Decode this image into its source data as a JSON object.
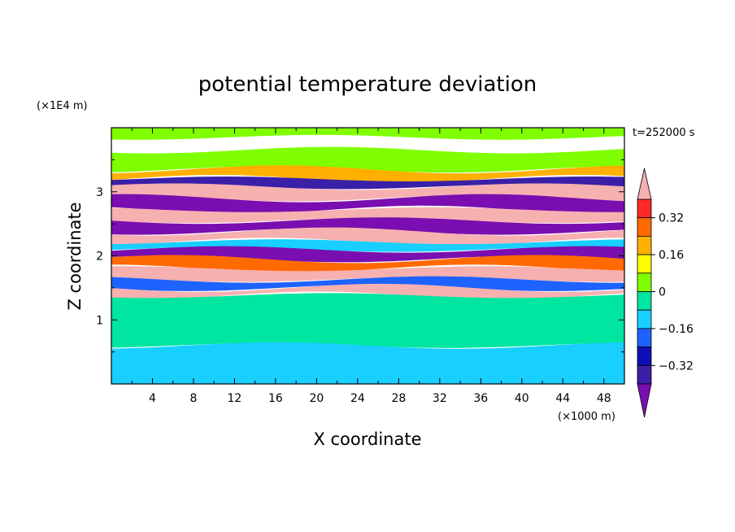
{
  "chart_data": {
    "type": "heatmap",
    "title": "potential temperature deviation",
    "xlabel": "X coordinate",
    "ylabel": "Z coordinate",
    "x_unit": "(×1000 m)",
    "y_unit": "(×1E4 m)",
    "time_label": "t=252000 s",
    "xlim": [
      0,
      50
    ],
    "ylim": [
      0,
      4
    ],
    "x_ticks": [
      "4",
      "8",
      "12",
      "16",
      "20",
      "24",
      "28",
      "32",
      "36",
      "40",
      "44",
      "48"
    ],
    "y_ticks": [
      "1",
      "2",
      "3"
    ],
    "colorbar": {
      "levels": [
        -0.48,
        -0.4,
        -0.32,
        -0.24,
        -0.16,
        -0.08,
        0,
        0.08,
        0.16,
        0.24,
        0.32,
        0.4,
        0.48
      ],
      "labels": [
        "0.32",
        "0.16",
        "0",
        "−0.16",
        "−0.32"
      ],
      "colors": [
        "#7a0eb0",
        "#3a1fa8",
        "#0f0fb8",
        "#1e63ff",
        "#18cfff",
        "#00e5a0",
        "#7fff00",
        "#ffff00",
        "#ffb000",
        "#ff6a00",
        "#ff2828",
        "#f7b0b0"
      ],
      "extends": "both"
    },
    "layers": [
      {
        "z": [
          3.85,
          4.0
        ],
        "level": 0.0
      },
      {
        "z": [
          3.35,
          3.65
        ],
        "level": 0.04
      },
      {
        "z": [
          3.2,
          3.35
        ],
        "level": 0.2
      },
      {
        "z": [
          3.08,
          3.2
        ],
        "level": -0.4
      },
      {
        "z": [
          2.9,
          3.08
        ],
        "level": 0.44
      },
      {
        "z": [
          2.72,
          2.9
        ],
        "level": -0.44
      },
      {
        "z": [
          2.55,
          2.72
        ],
        "level": 0.44
      },
      {
        "z": [
          2.38,
          2.55
        ],
        "level": -0.44
      },
      {
        "z": [
          2.22,
          2.38
        ],
        "level": 0.44
      },
      {
        "z": [
          2.1,
          2.22
        ],
        "level": -0.1
      },
      {
        "z": [
          1.95,
          2.1
        ],
        "level": -0.44
      },
      {
        "z": [
          1.8,
          1.95
        ],
        "level": 0.28
      },
      {
        "z": [
          1.63,
          1.8
        ],
        "level": 0.44
      },
      {
        "z": [
          1.5,
          1.63
        ],
        "level": -0.2
      },
      {
        "z": [
          1.38,
          1.5
        ],
        "level": 0.44
      },
      {
        "z": [
          0.6,
          1.38
        ],
        "level": -0.02
      },
      {
        "z": [
          0.0,
          0.6
        ],
        "level": -0.12
      }
    ]
  }
}
